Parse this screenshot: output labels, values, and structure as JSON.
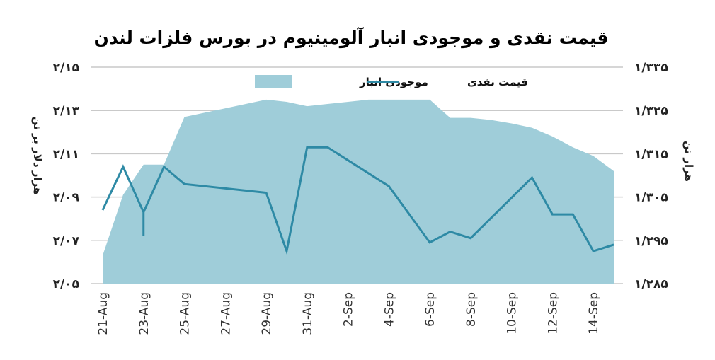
{
  "chart_data": {
    "type": "area+line",
    "title": "قیمت نقدی و موجودی انبار آلومینیوم در بورس فلزات لندن",
    "ylabel_left": "هزار دلار بر تن",
    "ylabel_right": "هزار تن",
    "ylim_left": [
      2.05,
      2.15
    ],
    "ylim_right": [
      1.285,
      1.335
    ],
    "yticks_left": [
      2.05,
      2.07,
      2.09,
      2.11,
      2.13,
      2.15
    ],
    "yticks_left_labels": [
      "۲/۰۵",
      "۲/۰۷",
      "۲/۰۹",
      "۲/۱۱",
      "۲/۱۳",
      "۲/۱۵"
    ],
    "yticks_right": [
      1.285,
      1.295,
      1.305,
      1.315,
      1.325,
      1.335
    ],
    "yticks_right_labels": [
      "۱/۲۸۵",
      "۱/۲۹۵",
      "۱/۳۰۵",
      "۱/۳۱۵",
      "۱/۳۲۵",
      "۱/۳۳۵"
    ],
    "x_index_range": [
      0,
      25
    ],
    "xticks": [
      {
        "i": 0,
        "label": "21-Aug"
      },
      {
        "i": 2,
        "label": "23-Aug"
      },
      {
        "i": 4,
        "label": "25-Aug"
      },
      {
        "i": 6,
        "label": "27-Aug"
      },
      {
        "i": 8,
        "label": "29-Aug"
      },
      {
        "i": 10,
        "label": "31-Aug"
      },
      {
        "i": 12,
        "label": "2-Sep"
      },
      {
        "i": 14,
        "label": "4-Sep"
      },
      {
        "i": 16,
        "label": "6-Sep"
      },
      {
        "i": 18,
        "label": "8-Sep"
      },
      {
        "i": 20,
        "label": "10-Sep"
      },
      {
        "i": 22,
        "label": "12-Sep"
      },
      {
        "i": 24,
        "label": "14-Sep"
      }
    ],
    "grid": true,
    "legend": {
      "position": "top-center",
      "entries": [
        {
          "name": "قیمت نقدی",
          "kind": "line"
        },
        {
          "name": "موجودی انبار",
          "kind": "area"
        }
      ]
    },
    "series": [
      {
        "name": "موجودی انبار",
        "kind": "area",
        "axis": "right",
        "color": "#9fcdd9",
        "points": [
          [
            0,
            1.2915
          ],
          [
            1,
            1.3055
          ],
          [
            2,
            1.3125
          ],
          [
            3,
            1.3125
          ],
          [
            4,
            1.3235
          ],
          [
            5,
            1.3245
          ],
          [
            6,
            1.3255
          ],
          [
            7,
            1.3265
          ],
          [
            8,
            1.3275
          ],
          [
            9,
            1.327
          ],
          [
            10,
            1.326
          ],
          [
            11,
            1.3265
          ],
          [
            12,
            1.327
          ],
          [
            13,
            1.3275
          ],
          [
            14,
            1.3275
          ],
          [
            15,
            1.3275
          ],
          [
            16,
            1.3275
          ],
          [
            17,
            1.3233
          ],
          [
            18,
            1.3233
          ],
          [
            19,
            1.3228
          ],
          [
            20,
            1.322
          ],
          [
            21,
            1.321
          ],
          [
            22,
            1.319
          ],
          [
            23,
            1.3165
          ],
          [
            24,
            1.3145
          ],
          [
            25,
            1.311
          ]
        ]
      },
      {
        "name": "قیمت نقدی",
        "kind": "line",
        "axis": "left",
        "color": "#2e8aa5",
        "points": [
          [
            0,
            2.084
          ],
          [
            1,
            2.104
          ],
          [
            2,
            2.083
          ],
          [
            2,
            2.072
          ],
          [
            2,
            2.083
          ],
          [
            3,
            2.104
          ],
          [
            4,
            2.096
          ],
          [
            8,
            2.092
          ],
          [
            9,
            2.065
          ],
          [
            10,
            2.113
          ],
          [
            11,
            2.113
          ],
          [
            14,
            2.095
          ],
          [
            16,
            2.069
          ],
          [
            17,
            2.074
          ],
          [
            18,
            2.071
          ],
          [
            21,
            2.099
          ],
          [
            22,
            2.082
          ],
          [
            23,
            2.082
          ],
          [
            24,
            2.065
          ],
          [
            25,
            2.068
          ]
        ]
      }
    ]
  }
}
